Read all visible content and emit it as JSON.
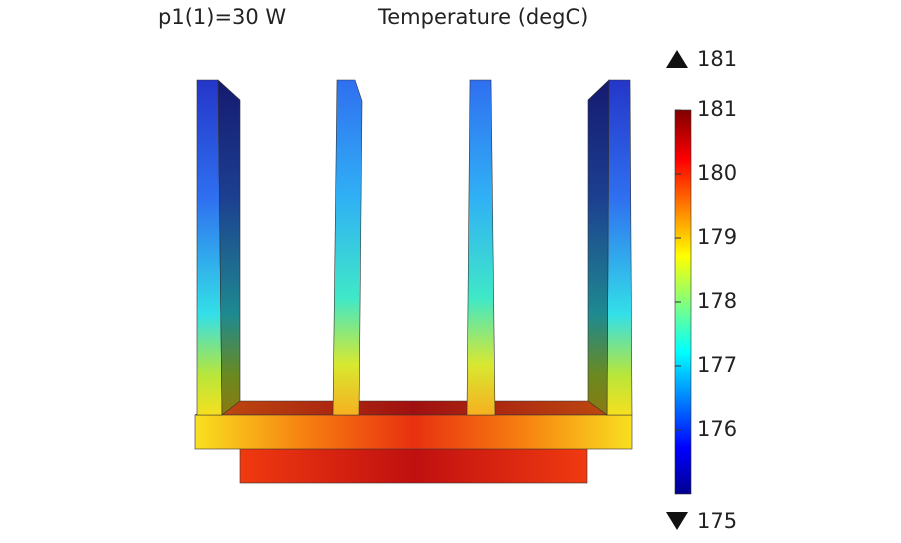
{
  "parameter": "p1(1)=30 W",
  "title": "Temperature (degC)",
  "max": 181,
  "min": 175,
  "colorbar": {
    "ticks": [
      181,
      180,
      179,
      178,
      177,
      176
    ]
  }
}
